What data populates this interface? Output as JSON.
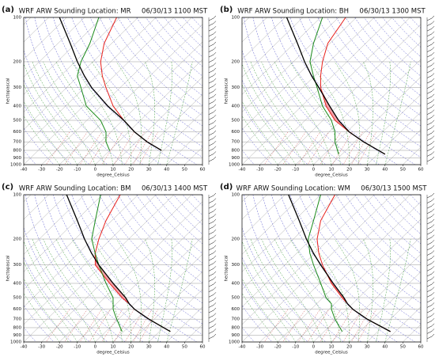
{
  "chart_data": [
    {
      "type": "skewt",
      "panel": "(a)",
      "title": "WRF ARW Sounding Location: MR     06/30/13 1100 MST",
      "xlabel": "degree_Celsius",
      "ylabel": "hectopascal",
      "log_y": true,
      "xlim": [
        -40,
        60
      ],
      "xticks": [
        -40,
        -30,
        -20,
        -10,
        0,
        10,
        20,
        30,
        40,
        50,
        60
      ],
      "ylim": [
        1000,
        100
      ],
      "yticks": [
        100,
        200,
        300,
        400,
        500,
        600,
        700,
        800,
        900,
        1000
      ],
      "pressure": [
        800,
        700,
        600,
        500,
        400,
        300,
        250,
        200,
        150,
        100
      ],
      "series": [
        {
          "color": "#e8211c",
          "values": [
            28.9,
            16,
            3.4,
            -9.3,
            -23.4,
            -37.9,
            -46.6,
            -55.7,
            -64.2,
            -72
          ]
        },
        {
          "color": "#1a8a1a",
          "values": [
            -0.1,
            -7,
            -12.6,
            -22.3,
            -38.4,
            -51.9,
            -60.6,
            -66.7,
            -72.2,
            -82
          ]
        },
        {
          "color": "#000000",
          "values": [
            28.9,
            16,
            3.4,
            -9.3,
            -26.4,
            -45.9,
            -56.6,
            -68.7,
            -83.2,
            -104
          ]
        }
      ]
    },
    {
      "type": "skewt",
      "panel": "(b)",
      "title": "WRF ARW Sounding Location: BH     06/30/13 1300 MST",
      "xlabel": "degree_Celsius",
      "ylabel": "hectopascal",
      "log_y": true,
      "xlim": [
        -40,
        60
      ],
      "xticks": [
        -40,
        -30,
        -20,
        -10,
        0,
        10,
        20,
        30,
        40,
        50,
        60
      ],
      "ylim": [
        1000,
        100
      ],
      "yticks": [
        100,
        200,
        300,
        400,
        500,
        600,
        700,
        800,
        900,
        1000
      ],
      "pressure": [
        850,
        700,
        600,
        500,
        400,
        300,
        250,
        200,
        150,
        100
      ],
      "series": [
        {
          "color": "#e8211c",
          "values": [
            34.1,
            15,
            1.4,
            -13.3,
            -26.4,
            -39.9,
            -46.6,
            -53.7,
            -61.2,
            -66
          ]
        },
        {
          "color": "#1a8a1a",
          "values": [
            8.1,
            -1,
            -6.6,
            -15.3,
            -28.4,
            -41.9,
            -50.6,
            -60.7,
            -69.2,
            -79
          ]
        },
        {
          "color": "#000000",
          "values": [
            34.1,
            15,
            1.4,
            -11.3,
            -24.4,
            -40.9,
            -51.6,
            -63.7,
            -78.2,
            -99
          ]
        }
      ]
    },
    {
      "type": "skewt",
      "panel": "(c)",
      "title": "WRF ARW Sounding Location: BM     06/30/13 1400 MST",
      "xlabel": "degree_Celsius",
      "ylabel": "hectopascal",
      "log_y": true,
      "xlim": [
        -40,
        60
      ],
      "xticks": [
        -40,
        -30,
        -20,
        -10,
        0,
        10,
        20,
        30,
        40,
        50,
        60
      ],
      "ylim": [
        1000,
        100
      ],
      "yticks": [
        100,
        200,
        300,
        400,
        500,
        600,
        700,
        800,
        900,
        1000
      ],
      "pressure": [
        850,
        700,
        600,
        550,
        500,
        400,
        300,
        250,
        200,
        150,
        100
      ],
      "series": [
        {
          "color": "#e8211c",
          "values": [
            36.1,
            17,
            3.4,
            -2.8,
            -10.3,
            -25.4,
            -43.9,
            -50.6,
            -56.7,
            -63.2,
            -70
          ]
        },
        {
          "color": "#1a8a1a",
          "values": [
            9.1,
            -1,
            -8.6,
            -11.8,
            -15.3,
            -27.4,
            -41.9,
            -50.6,
            -60.7,
            -69.2,
            -81
          ]
        },
        {
          "color": "#000000",
          "values": [
            36.1,
            17,
            3.4,
            -2.8,
            -8.3,
            -23.4,
            -41.9,
            -52.6,
            -64.7,
            -79.2,
            -100
          ]
        }
      ]
    },
    {
      "type": "skewt",
      "panel": "(d)",
      "title": "WRF ARW Sounding Location: WM     06/30/13 1500 MST",
      "xlabel": "degree_Celsius",
      "ylabel": "hectopascal",
      "log_y": true,
      "xlim": [
        -40,
        60
      ],
      "xticks": [
        -40,
        -30,
        -20,
        -10,
        0,
        10,
        20,
        30,
        40,
        50,
        60
      ],
      "ylim": [
        1000,
        100
      ],
      "yticks": [
        100,
        200,
        300,
        400,
        500,
        600,
        700,
        800,
        900,
        1000
      ],
      "pressure": [
        850,
        700,
        600,
        550,
        500,
        400,
        300,
        250,
        200,
        150,
        100
      ],
      "series": [
        {
          "color": "#e8211c",
          "values": [
            37.1,
            17,
            3.4,
            -2.8,
            -9.3,
            -23.4,
            -38.9,
            -47.6,
            -56.7,
            -65.2,
            -72
          ]
        },
        {
          "color": "#1a8a1a",
          "values": [
            10.1,
            -1,
            -8.6,
            -11.8,
            -18.3,
            -29.4,
            -43.9,
            -52.6,
            -61.7,
            -69.2,
            -80
          ]
        },
        {
          "color": "#000000",
          "values": [
            37.1,
            17,
            3.4,
            -2.8,
            -8.3,
            -22.4,
            -39.9,
            -50.6,
            -62.7,
            -77.2,
            -98
          ]
        }
      ]
    }
  ]
}
